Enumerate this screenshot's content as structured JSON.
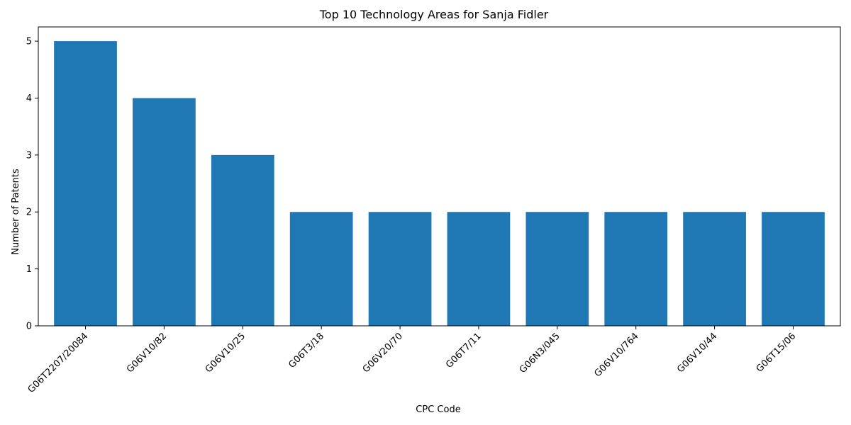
{
  "chart_data": {
    "type": "bar",
    "title": "Top 10 Technology Areas for Sanja Fidler",
    "xlabel": "CPC Code",
    "ylabel": "Number of Patents",
    "categories": [
      "G06T2207/20084",
      "G06V10/82",
      "G06V10/25",
      "G06T3/18",
      "G06V20/70",
      "G06T7/11",
      "G06N3/045",
      "G06V10/764",
      "G06V10/44",
      "G06T15/06"
    ],
    "values": [
      5,
      4,
      3,
      2,
      2,
      2,
      2,
      2,
      2,
      2
    ],
    "ylim": [
      0,
      5.25
    ],
    "yticks": [
      0,
      1,
      2,
      3,
      4,
      5
    ],
    "grid": false,
    "bar_color": "#1f77b4"
  }
}
